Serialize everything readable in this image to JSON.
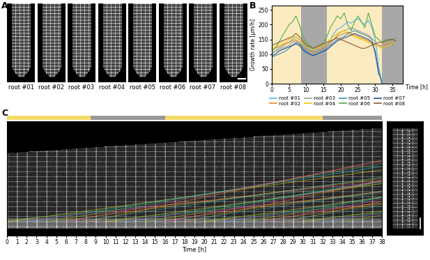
{
  "panel_labels": [
    "A",
    "B",
    "C"
  ],
  "panel_A": {
    "images": [
      "root #01",
      "root #02",
      "root #03",
      "root #04",
      "root #05",
      "root #06",
      "root #07",
      "root #08"
    ]
  },
  "light_periods": [
    [
      0,
      8.5
    ],
    [
      16,
      32
    ]
  ],
  "dark_periods": [
    [
      8.5,
      16
    ],
    [
      32,
      38
    ]
  ],
  "chart_data": {
    "type": "line",
    "y_label": "Growth rate [µm/h]",
    "x_label": "Time [h]",
    "x": [
      0,
      1,
      2,
      3,
      4,
      5,
      6,
      7,
      8,
      9,
      10,
      11,
      12,
      13,
      14,
      15,
      16,
      17,
      18,
      19,
      20,
      21,
      22,
      23,
      24,
      25,
      26,
      27,
      28,
      29,
      30,
      31,
      32,
      33,
      34,
      35,
      36
    ],
    "series": [
      {
        "name": "root #01",
        "color": "#56b4e9",
        "values": [
          100,
          110,
          120,
          125,
          135,
          140,
          150,
          160,
          150,
          130,
          120,
          115,
          110,
          105,
          110,
          115,
          130,
          150,
          170,
          185,
          190,
          200,
          210,
          205,
          215,
          220,
          210,
          200,
          215,
          190,
          150,
          60,
          0,
          null,
          null,
          null,
          null
        ]
      },
      {
        "name": "root #02",
        "color": "#e8892b",
        "values": [
          115,
          120,
          125,
          130,
          135,
          140,
          145,
          150,
          140,
          125,
          115,
          110,
          105,
          110,
          115,
          120,
          130,
          140,
          150,
          160,
          165,
          170,
          175,
          170,
          165,
          160,
          155,
          150,
          145,
          140,
          135,
          130,
          130,
          135,
          140,
          140,
          145
        ]
      },
      {
        "name": "root #03",
        "color": "#9e9e9e",
        "values": [
          105,
          110,
          115,
          120,
          125,
          130,
          140,
          145,
          135,
          120,
          110,
          105,
          100,
          105,
          110,
          115,
          125,
          135,
          150,
          165,
          175,
          180,
          185,
          190,
          185,
          180,
          175,
          170,
          165,
          155,
          140,
          130,
          125,
          130,
          135,
          130,
          135
        ]
      },
      {
        "name": "root #04",
        "color": "#f2c200",
        "values": [
          120,
          125,
          130,
          135,
          140,
          150,
          155,
          160,
          150,
          135,
          125,
          120,
          115,
          120,
          125,
          130,
          140,
          150,
          160,
          170,
          175,
          180,
          170,
          165,
          160,
          155,
          150,
          145,
          140,
          135,
          130,
          125,
          120,
          125,
          130,
          135,
          null
        ]
      },
      {
        "name": "root #05",
        "color": "#3a8fb7",
        "values": [
          90,
          95,
          100,
          105,
          110,
          120,
          130,
          140,
          135,
          120,
          110,
          100,
          95,
          100,
          105,
          110,
          120,
          130,
          140,
          150,
          155,
          160,
          170,
          175,
          180,
          175,
          170,
          165,
          160,
          150,
          100,
          30,
          null,
          null,
          null,
          null,
          null
        ]
      },
      {
        "name": "root #06",
        "color": "#4daf4a",
        "values": [
          110,
          120,
          140,
          160,
          180,
          200,
          210,
          230,
          200,
          160,
          140,
          130,
          120,
          125,
          130,
          140,
          160,
          190,
          210,
          230,
          220,
          240,
          200,
          180,
          210,
          230,
          210,
          190,
          240,
          200,
          160,
          150,
          140,
          150,
          145,
          150,
          155
        ]
      },
      {
        "name": "root #07",
        "color": "#1f4e9a",
        "values": [
          95,
          100,
          110,
          115,
          120,
          125,
          130,
          135,
          130,
          115,
          105,
          100,
          95,
          100,
          105,
          110,
          115,
          125,
          135,
          145,
          150,
          155,
          160,
          165,
          170,
          165,
          160,
          155,
          150,
          140,
          110,
          40,
          0,
          null,
          null,
          null,
          null
        ]
      },
      {
        "name": "root #08",
        "color": "#8b5a2b",
        "values": [
          130,
          135,
          140,
          145,
          150,
          155,
          160,
          170,
          160,
          145,
          130,
          125,
          120,
          125,
          130,
          135,
          140,
          145,
          150,
          155,
          150,
          145,
          140,
          135,
          130,
          125,
          120,
          120,
          125,
          130,
          135,
          140,
          140,
          145,
          150,
          150,
          145
        ]
      }
    ],
    "xlim": [
      0,
      38
    ],
    "xticks": [
      0,
      5,
      10,
      15,
      20,
      25,
      30,
      35
    ],
    "ylim": [
      0,
      265
    ],
    "yticks": [
      0,
      50,
      100,
      150,
      200,
      250
    ],
    "legend": "bottom"
  },
  "panel_C": {
    "x_label": "Time [h]",
    "xlim": [
      0,
      38
    ],
    "xticks": [
      0,
      1,
      2,
      3,
      4,
      5,
      6,
      7,
      8,
      9,
      10,
      11,
      12,
      13,
      14,
      15,
      16,
      17,
      18,
      19,
      20,
      21,
      22,
      23,
      24,
      25,
      26,
      27,
      28,
      29,
      30,
      31,
      32,
      33,
      34,
      35,
      36,
      37,
      38
    ]
  }
}
